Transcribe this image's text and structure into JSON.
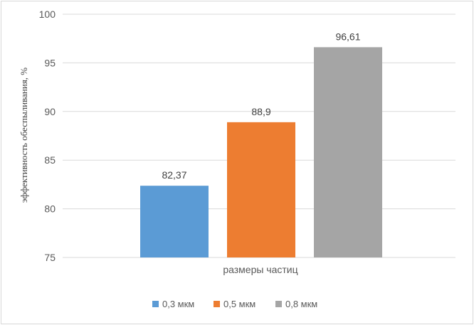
{
  "chart_data": {
    "type": "bar",
    "categories": [
      "размеры частиц"
    ],
    "xlabel": "размеры частиц",
    "ylabel": "эффективность обеспыливания, %",
    "ylim": [
      75,
      100
    ],
    "yticks": [
      75,
      80,
      85,
      90,
      95,
      100
    ],
    "grid": true,
    "legend_position": "bottom",
    "series": [
      {
        "name": "0,3 мкм",
        "value": 82.37,
        "label": "82,37",
        "color": "#5b9bd5"
      },
      {
        "name": "0,5 мкм",
        "value": 88.9,
        "label": "88,9",
        "color": "#ed7d31"
      },
      {
        "name": "0,8 мкм",
        "value": 96.61,
        "label": "96,61",
        "color": "#a5a5a5"
      }
    ]
  }
}
